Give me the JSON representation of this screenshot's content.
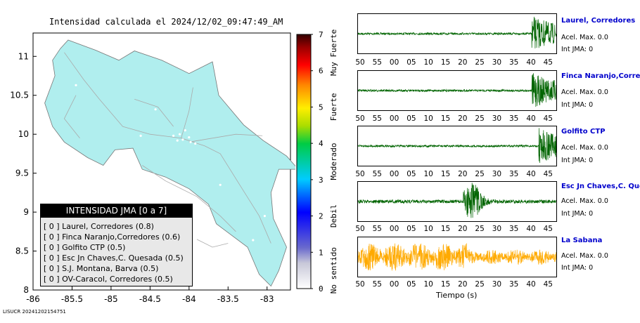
{
  "map": {
    "title": "Intensidad calculada el 2024/12/02_09:47:49_AM",
    "x_ticks": [
      "-86",
      "-85.5",
      "-85",
      "-84.5",
      "-84",
      "-83.5",
      "-83"
    ],
    "x_values": [
      -86,
      -85.5,
      -85,
      -84.5,
      -84,
      -83.5,
      -83
    ],
    "y_ticks": [
      "11",
      "10.5",
      "10",
      "9.5",
      "9",
      "8.5",
      "8"
    ],
    "y_values": [
      11,
      10.5,
      10,
      9.5,
      9,
      8.5,
      8
    ],
    "xlim": [
      -86,
      -82.7
    ],
    "ylim": [
      8,
      11.3
    ],
    "land_color": "#b0eeee",
    "sea_color": "#ffffff"
  },
  "colorbar": {
    "ticks": [
      "0",
      "1",
      "2",
      "3",
      "4",
      "5",
      "6",
      "7"
    ],
    "range": [
      0,
      7
    ],
    "labels": [
      "No sentido",
      "Debil",
      "Moderado",
      "Fuerte",
      "Muy Fuerte"
    ]
  },
  "legend": {
    "header": "INTENSIDAD JMA [0 a 7]",
    "rows": [
      "[ 0 ]  Laurel, Corredores (0.8)",
      "[ 0 ]  Finca Naranjo,Corredores (0.6)",
      "[ 0 ]  Golfito CTP (0.5)",
      "[ 0 ]  Esc Jn Chaves,C. Quesada (0.5)",
      "[ 0 ]  S.J. Montana, Barva (0.5)",
      "[ 0 ]  OV-Caracol, Corredores (0.5)"
    ]
  },
  "footer_id": "LISUCR 20241202154751",
  "waveforms": {
    "x_ticks": [
      "50",
      "55",
      "00",
      "05",
      "10",
      "15",
      "20",
      "25",
      "30",
      "35",
      "40",
      "45"
    ],
    "xlabel": "Tiempo (s)",
    "stations": [
      {
        "name": "Laurel, Corredores",
        "acel": "Acel. Max. 0.0",
        "int": "Int JMA: 0",
        "color": "#006400",
        "arrival": 40,
        "early_burst": false
      },
      {
        "name": "Finca Naranjo,Corredores",
        "acel": "Acel. Max. 0.0",
        "int": "Int JMA: 0",
        "color": "#006400",
        "arrival": 40,
        "early_burst": false
      },
      {
        "name": "Golfito CTP",
        "acel": "Acel. Max. 0.0",
        "int": "Int JMA: 0",
        "color": "#006400",
        "arrival": 42,
        "early_burst": false
      },
      {
        "name": "Esc Jn Chaves,C. Quesada",
        "acel": "Acel. Max. 0.0",
        "int": "Int JMA: 0",
        "color": "#006400",
        "arrival": 20,
        "early_burst": true
      },
      {
        "name": "La Sabana",
        "acel": "Acel. Max. 0.0",
        "int": "Int JMA: 0",
        "color": "#ffaa00",
        "arrival": 0,
        "early_burst": false
      }
    ]
  }
}
